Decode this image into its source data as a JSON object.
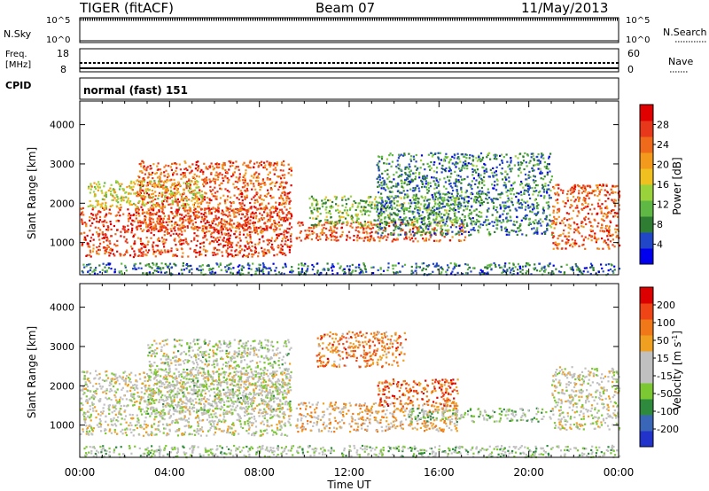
{
  "header": {
    "radar": "TIGER (fitACF)",
    "beam": "Beam 07",
    "date": "11/May/2013"
  },
  "strips": {
    "nsky_label": "N.Sky",
    "nsky_ticks": [
      "10^5",
      "10^0"
    ],
    "nsearch_label": "N.Search",
    "freq_label": "Freq.",
    "freq_unit": "[MHz]",
    "freq_ticks": [
      "18",
      "8"
    ],
    "nave_label": "Nave",
    "nave_ticks": [
      "60",
      "0"
    ],
    "cpid_label": "CPID",
    "cpid_value": "normal (fast) 151"
  },
  "colors": {
    "power_scale": [
      "#0000ee",
      "#2246c8",
      "#2e7d32",
      "#5fb844",
      "#9ad23c",
      "#f0c020",
      "#f39a1c",
      "#ef6a1a",
      "#e8381c",
      "#e00000"
    ],
    "velocity_scale": [
      "#2233cc",
      "#3a66b8",
      "#2e8b3e",
      "#7bc832",
      "#c0c0c0",
      "#c0c0c0",
      "#f0a020",
      "#f07818",
      "#ee4416",
      "#dd0000"
    ]
  },
  "chart_data": [
    {
      "type": "heatmap",
      "name": "power",
      "xlabel": "",
      "ylabel": "Slant Range [km]",
      "ylim": [
        180,
        4600
      ],
      "yticks": [
        "1000",
        "2000",
        "3000",
        "4000"
      ],
      "colorbar_label": "Power [dB]",
      "colorbar_ticks": [
        "4",
        "8",
        "12",
        "16",
        "20",
        "24",
        "28"
      ],
      "colorbar_range": [
        0,
        32
      ],
      "regions": [
        {
          "hours": [
            0,
            9.4
          ],
          "range_km": [
            650,
            1900
          ],
          "value": 27
        },
        {
          "hours": [
            2.5,
            9.4
          ],
          "range_km": [
            1300,
            3100
          ],
          "value": 25
        },
        {
          "hours": [
            0.3,
            5.5
          ],
          "range_km": [
            1900,
            2600
          ],
          "value": 17
        },
        {
          "hours": [
            9.6,
            17.2
          ],
          "range_km": [
            1050,
            1550
          ],
          "value": 25
        },
        {
          "hours": [
            10.2,
            16.8
          ],
          "range_km": [
            1450,
            2200
          ],
          "value": 12
        },
        {
          "hours": [
            13.2,
            21.0
          ],
          "range_km": [
            1200,
            3300
          ],
          "value": 8
        },
        {
          "hours": [
            21.0,
            24.0
          ],
          "range_km": [
            850,
            2500
          ],
          "value": 25
        },
        {
          "hours": [
            0,
            24
          ],
          "range_km": [
            200,
            500
          ],
          "value": 7
        }
      ]
    },
    {
      "type": "heatmap",
      "name": "velocity",
      "xlabel": "Time UT",
      "ylabel": "Slant Range [km]",
      "ylim": [
        180,
        4600
      ],
      "yticks": [
        "1000",
        "2000",
        "3000",
        "4000"
      ],
      "colorbar_label": "Velocity [m s-1]",
      "colorbar_ticks": [
        "200",
        "100",
        "50",
        "15",
        "-15",
        "-50",
        "-100",
        "-200"
      ],
      "colorbar_range": [
        -250,
        250
      ],
      "regions": [
        {
          "hours": [
            0,
            9.4
          ],
          "range_km": [
            750,
            2400
          ],
          "value": 0
        },
        {
          "hours": [
            3.0,
            9.4
          ],
          "range_km": [
            1300,
            3200
          ],
          "value": -20
        },
        {
          "hours": [
            9.6,
            16.8
          ],
          "range_km": [
            850,
            1600
          ],
          "value": 60
        },
        {
          "hours": [
            14.6,
            21.0
          ],
          "range_km": [
            1100,
            1450
          ],
          "value": -60
        },
        {
          "hours": [
            13.2,
            16.8
          ],
          "range_km": [
            1500,
            2200
          ],
          "value": 150
        },
        {
          "hours": [
            10.5,
            14.5
          ],
          "range_km": [
            2500,
            3400
          ],
          "value": 120
        },
        {
          "hours": [
            21.0,
            24.0
          ],
          "range_km": [
            900,
            2500
          ],
          "value": 0
        },
        {
          "hours": [
            0,
            24
          ],
          "range_km": [
            200,
            500
          ],
          "value": -40
        }
      ]
    }
  ],
  "xaxis": {
    "xlim": [
      0,
      24
    ],
    "ticks": [
      "00:00",
      "04:00",
      "08:00",
      "12:00",
      "16:00",
      "20:00",
      "00:00"
    ],
    "label": "Time UT"
  }
}
